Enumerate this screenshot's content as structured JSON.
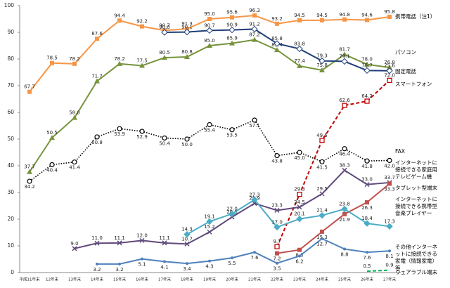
{
  "chart_data": {
    "type": "line",
    "categories": [
      "平成11年末",
      "12年末",
      "13年末",
      "14年末",
      "15年末",
      "16年末",
      "17年末",
      "18年末",
      "19年末",
      "20年末",
      "21年末",
      "22年末",
      "23年末",
      "24年末",
      "25年末",
      "26年末",
      "27年末"
    ],
    "ylim": [
      0,
      100
    ],
    "yticks": [
      0,
      10,
      20,
      30,
      40,
      50,
      60,
      70,
      80,
      90,
      100
    ],
    "grid": false,
    "series": [
      {
        "name": "携帯電話（注1）",
        "color": "#f79646",
        "marker": "square",
        "line": "solid",
        "values": [
          67.7,
          78.5,
          78.2,
          87.6,
          94.4,
          92.2,
          90.7,
          91.3,
          95.0,
          95.6,
          96.3,
          93.2,
          94.5,
          94.5,
          94.8,
          94.6,
          95.8
        ],
        "value_labels": [
          "67.7",
          "78.5",
          "78.2",
          "87.6",
          "94.4",
          "92.2",
          "90.7",
          "91.3",
          "95.0",
          "95.6",
          "96.3",
          "93.2",
          "94.5",
          "94.5",
          "94.8",
          "94.6",
          "95.8"
        ]
      },
      {
        "name": "パソコン",
        "color": "#77933c",
        "marker": "triangle",
        "line": "solid",
        "values": [
          37.7,
          50.5,
          58.0,
          71.7,
          78.2,
          77.5,
          80.5,
          80.8,
          85.0,
          85.9,
          87.2,
          83.4,
          77.4,
          75.8,
          81.7,
          78.0,
          76.8
        ],
        "value_labels": [
          "37.7",
          "50.5",
          "58.0",
          "71.7",
          "78.2",
          "77.5",
          "80.5",
          "80.8",
          "85.0",
          "85.9",
          "87.2",
          "83.4",
          "77.4",
          "75.8",
          "81.7",
          "78.0",
          "76.8"
        ]
      },
      {
        "name": "固定電話",
        "color": "#1f3f7a",
        "marker": "diamond",
        "line": "solid",
        "values": [
          null,
          null,
          null,
          null,
          null,
          null,
          90.0,
          90.1,
          90.7,
          90.9,
          91.2,
          85.8,
          83.8,
          79.3,
          79.1,
          75.7,
          75.6
        ],
        "value_labels": [
          null,
          null,
          null,
          null,
          null,
          null,
          "90.0",
          "90.1",
          "90.7",
          "90.9",
          "91.2",
          "85.8",
          "83.8",
          "79.3",
          "79.1",
          "75.7",
          "75.6"
        ]
      },
      {
        "name": "スマートフォン",
        "color": "#c00000",
        "marker": "open-square",
        "line": "dashed",
        "values": [
          null,
          null,
          null,
          null,
          null,
          null,
          null,
          null,
          null,
          null,
          null,
          9.7,
          29.3,
          49.5,
          62.6,
          64.2,
          72.0
        ],
        "value_labels": [
          null,
          null,
          null,
          null,
          null,
          null,
          null,
          null,
          null,
          null,
          null,
          "9.7",
          "29.3",
          "49.5",
          "62.6",
          "64.2",
          "72.0"
        ]
      },
      {
        "name": "FAX",
        "color": "#000000",
        "marker": "open-circle",
        "line": "dotted",
        "values": [
          34.2,
          40.4,
          41.4,
          50.8,
          53.9,
          52.9,
          50.4,
          50.0,
          55.4,
          53.5,
          57.1,
          43.8,
          45.0,
          41.5,
          46.4,
          41.8,
          42.0
        ],
        "value_labels": [
          "34.2",
          "40.4",
          "41.4",
          "50.8",
          "53.9",
          "52.9",
          "50.4",
          "50.0",
          "55.4",
          "53.5",
          "57.1",
          "43.8",
          "45.0",
          "41.5",
          "46.4",
          "41.8",
          "42.0"
        ]
      },
      {
        "name": "インターネットに接続できる家庭用テレビゲーム機",
        "color": "#604a7b",
        "marker": "x",
        "line": "solid",
        "values": [
          null,
          null,
          9.0,
          11.0,
          11.1,
          12.0,
          11.1,
          10.7,
          15.2,
          20.8,
          25.9,
          23.3,
          24.5,
          29.5,
          38.3,
          33.0,
          33.7
        ],
        "value_labels": [
          null,
          null,
          "9.0",
          "11.0",
          "11.1",
          "12.0",
          "11.1",
          "10.7",
          "15.2",
          "20.8",
          "25.9",
          "23.3",
          "24.5",
          "29.5",
          "38.3",
          "33.0",
          "33.7"
        ]
      },
      {
        "name": "タブレット型端末",
        "color": "#c0504d",
        "marker": "square",
        "line": "solid",
        "values": [
          null,
          null,
          null,
          null,
          null,
          null,
          null,
          null,
          null,
          null,
          null,
          7.2,
          8.5,
          15.3,
          21.9,
          26.3,
          33.3
        ],
        "value_labels": [
          null,
          null,
          null,
          null,
          null,
          null,
          null,
          null,
          null,
          null,
          null,
          "7.2",
          "8.5",
          "15.3",
          "21.9",
          "26.3",
          "33.3"
        ]
      },
      {
        "name": "インターネットに接続できる携帯型音楽プレイヤー",
        "color": "#4bacc6",
        "marker": "diamond",
        "line": "solid",
        "values": [
          null,
          null,
          null,
          null,
          null,
          null,
          null,
          14.3,
          19.1,
          22.0,
          27.3,
          17.0,
          20.1,
          21.4,
          23.8,
          18.4,
          17.3
        ],
        "value_labels": [
          null,
          null,
          null,
          null,
          null,
          null,
          null,
          "14.3",
          "19.1",
          "22.0",
          "27.3",
          "17.0",
          "20.1",
          "21.4",
          "23.8",
          "18.4",
          "17.3"
        ]
      },
      {
        "name": "その他インターネットに接続できる家電（情報家電）等",
        "color": "#4f81bd",
        "marker": "circle",
        "line": "solid",
        "values": [
          null,
          null,
          null,
          3.2,
          3.2,
          5.1,
          4.1,
          3.4,
          4.3,
          5.5,
          7.6,
          3.5,
          6.2,
          12.7,
          8.8,
          7.6,
          8.1
        ],
        "value_labels": [
          null,
          null,
          null,
          "3.2",
          "3.2",
          "5.1",
          "4.1",
          "3.4",
          "4.3",
          "5.5",
          "7.6",
          "3.5",
          "6.2",
          "12.7",
          "8.8",
          "7.6",
          "8.1"
        ]
      },
      {
        "name": "ウェアラブル端末",
        "color": "#00b050",
        "marker": "none",
        "line": "dashed",
        "values": [
          null,
          null,
          null,
          null,
          null,
          null,
          null,
          null,
          null,
          null,
          null,
          null,
          null,
          null,
          null,
          0.5,
          0.9
        ],
        "value_labels": [
          null,
          null,
          null,
          null,
          null,
          null,
          null,
          null,
          null,
          null,
          null,
          null,
          null,
          null,
          null,
          "0.5",
          "0.9"
        ]
      }
    ]
  }
}
